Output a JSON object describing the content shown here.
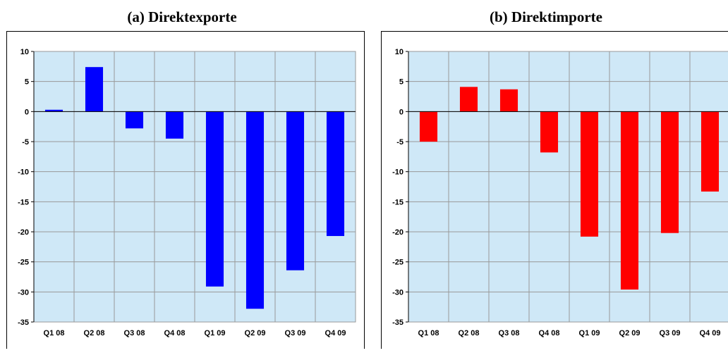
{
  "chart_data": [
    {
      "type": "bar",
      "title": "(a) Direktexporte",
      "categories": [
        "Q1 08",
        "Q2 08",
        "Q3 08",
        "Q4 08",
        "Q1 09",
        "Q2 09",
        "Q3 09",
        "Q4 09"
      ],
      "values": [
        0.3,
        7.4,
        -2.8,
        -4.5,
        -29.1,
        -32.8,
        -26.4,
        -20.7
      ],
      "ylim": [
        -35,
        10
      ],
      "yticks": [
        10,
        5,
        0,
        -5,
        -10,
        -15,
        -20,
        -25,
        -30,
        -35
      ],
      "grid": true,
      "bar_color": "#0000ff",
      "plot_bg": "#cfe8f7"
    },
    {
      "type": "bar",
      "title": "(b) Direktimporte",
      "categories": [
        "Q1 08",
        "Q2 08",
        "Q3 08",
        "Q4 08",
        "Q1 09",
        "Q2 09",
        "Q3 09",
        "Q4 09"
      ],
      "values": [
        -5.0,
        4.1,
        3.7,
        -6.8,
        -20.8,
        -29.6,
        -20.2,
        -13.3
      ],
      "ylim": [
        -35,
        10
      ],
      "yticks": [
        10,
        5,
        0,
        -5,
        -10,
        -15,
        -20,
        -25,
        -30,
        -35
      ],
      "grid": true,
      "bar_color": "#ff0000",
      "plot_bg": "#cfe8f7"
    }
  ]
}
